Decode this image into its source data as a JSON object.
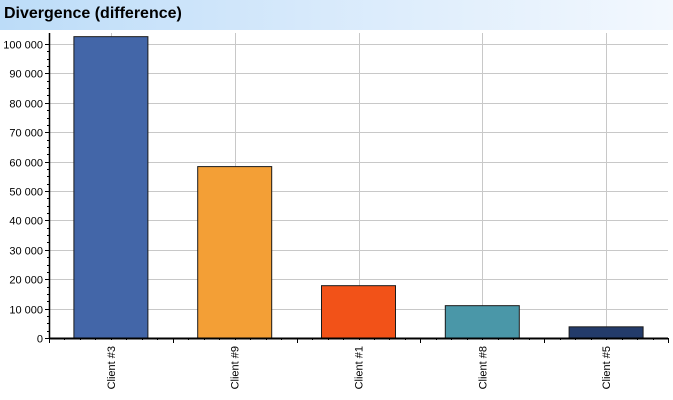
{
  "chart_data": {
    "type": "bar",
    "title": "Divergence (difference)",
    "xlabel": "",
    "ylabel": "",
    "categories": [
      "Client #3",
      "Client #9",
      "Client #1",
      "Client #8",
      "Client #5"
    ],
    "values": [
      102500,
      58300,
      17800,
      11000,
      3800
    ],
    "colors": [
      "#4366a8",
      "#f39f36",
      "#f25218",
      "#4a97a8",
      "#233b6a"
    ],
    "ylim": [
      0,
      100000
    ],
    "yticks": [
      0,
      10000,
      20000,
      30000,
      40000,
      50000,
      60000,
      70000,
      80000,
      90000,
      100000
    ],
    "ytick_labels": [
      "0",
      "10 000",
      "20 000",
      "30 000",
      "40 000",
      "50 000",
      "60 000",
      "70 000",
      "80 000",
      "90 000",
      "100 000"
    ],
    "grid": true,
    "legend": "none"
  }
}
